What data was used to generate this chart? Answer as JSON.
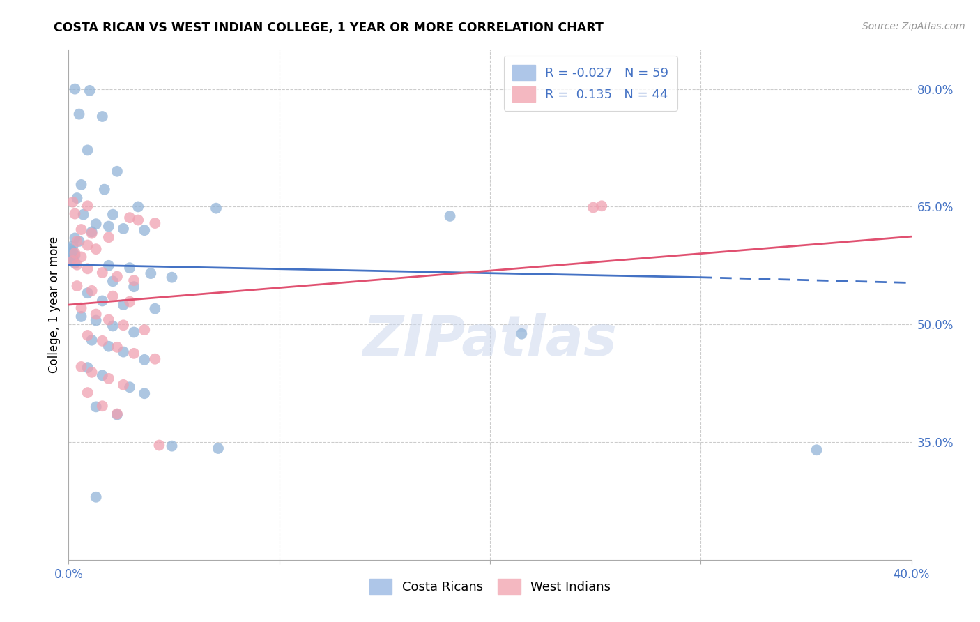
{
  "title": "COSTA RICAN VS WEST INDIAN COLLEGE, 1 YEAR OR MORE CORRELATION CHART",
  "source": "Source: ZipAtlas.com",
  "ylabel": "College, 1 year or more",
  "xlim": [
    0.0,
    0.4
  ],
  "ylim": [
    0.2,
    0.85
  ],
  "ytick_labels_right": [
    "80.0%",
    "65.0%",
    "50.0%",
    "35.0%"
  ],
  "ytick_positions_right": [
    0.8,
    0.65,
    0.5,
    0.35
  ],
  "watermark": "ZIPatlas",
  "blue_color": "#92b4d8",
  "pink_color": "#f0a0b0",
  "blue_line_color": "#4472c4",
  "pink_line_color": "#e05070",
  "blue_line_solid": [
    [
      0.0,
      0.576
    ],
    [
      0.3,
      0.56
    ]
  ],
  "blue_line_dash": [
    [
      0.3,
      0.56
    ],
    [
      0.4,
      0.553
    ]
  ],
  "pink_line": [
    [
      0.0,
      0.525
    ],
    [
      0.4,
      0.612
    ]
  ],
  "blue_scatter": [
    [
      0.003,
      0.8
    ],
    [
      0.01,
      0.798
    ],
    [
      0.005,
      0.768
    ],
    [
      0.016,
      0.765
    ],
    [
      0.009,
      0.722
    ],
    [
      0.023,
      0.695
    ],
    [
      0.006,
      0.678
    ],
    [
      0.017,
      0.672
    ],
    [
      0.004,
      0.661
    ],
    [
      0.033,
      0.65
    ],
    [
      0.07,
      0.648
    ],
    [
      0.007,
      0.64
    ],
    [
      0.021,
      0.64
    ],
    [
      0.013,
      0.628
    ],
    [
      0.019,
      0.625
    ],
    [
      0.026,
      0.622
    ],
    [
      0.036,
      0.62
    ],
    [
      0.011,
      0.618
    ],
    [
      0.003,
      0.61
    ],
    [
      0.005,
      0.606
    ],
    [
      0.002,
      0.6
    ],
    [
      0.001,
      0.596
    ],
    [
      0.002,
      0.593
    ],
    [
      0.001,
      0.59
    ],
    [
      0.003,
      0.588
    ],
    [
      0.002,
      0.585
    ],
    [
      0.001,
      0.582
    ],
    [
      0.003,
      0.578
    ],
    [
      0.019,
      0.575
    ],
    [
      0.029,
      0.572
    ],
    [
      0.039,
      0.565
    ],
    [
      0.049,
      0.56
    ],
    [
      0.021,
      0.555
    ],
    [
      0.031,
      0.548
    ],
    [
      0.009,
      0.54
    ],
    [
      0.016,
      0.53
    ],
    [
      0.026,
      0.525
    ],
    [
      0.041,
      0.52
    ],
    [
      0.006,
      0.51
    ],
    [
      0.013,
      0.505
    ],
    [
      0.021,
      0.498
    ],
    [
      0.031,
      0.49
    ],
    [
      0.011,
      0.48
    ],
    [
      0.019,
      0.472
    ],
    [
      0.026,
      0.465
    ],
    [
      0.036,
      0.455
    ],
    [
      0.009,
      0.445
    ],
    [
      0.016,
      0.435
    ],
    [
      0.029,
      0.42
    ],
    [
      0.036,
      0.412
    ],
    [
      0.013,
      0.395
    ],
    [
      0.023,
      0.385
    ],
    [
      0.049,
      0.345
    ],
    [
      0.071,
      0.342
    ],
    [
      0.181,
      0.638
    ],
    [
      0.013,
      0.28
    ],
    [
      0.215,
      0.488
    ],
    [
      0.355,
      0.34
    ]
  ],
  "pink_scatter": [
    [
      0.002,
      0.656
    ],
    [
      0.009,
      0.651
    ],
    [
      0.003,
      0.641
    ],
    [
      0.029,
      0.636
    ],
    [
      0.033,
      0.633
    ],
    [
      0.041,
      0.629
    ],
    [
      0.006,
      0.621
    ],
    [
      0.011,
      0.616
    ],
    [
      0.019,
      0.611
    ],
    [
      0.004,
      0.606
    ],
    [
      0.009,
      0.601
    ],
    [
      0.013,
      0.596
    ],
    [
      0.003,
      0.591
    ],
    [
      0.006,
      0.586
    ],
    [
      0.002,
      0.581
    ],
    [
      0.004,
      0.576
    ],
    [
      0.009,
      0.571
    ],
    [
      0.016,
      0.566
    ],
    [
      0.023,
      0.561
    ],
    [
      0.031,
      0.556
    ],
    [
      0.004,
      0.549
    ],
    [
      0.011,
      0.543
    ],
    [
      0.021,
      0.536
    ],
    [
      0.029,
      0.529
    ],
    [
      0.006,
      0.521
    ],
    [
      0.013,
      0.513
    ],
    [
      0.019,
      0.506
    ],
    [
      0.026,
      0.499
    ],
    [
      0.036,
      0.493
    ],
    [
      0.009,
      0.486
    ],
    [
      0.016,
      0.479
    ],
    [
      0.023,
      0.471
    ],
    [
      0.031,
      0.463
    ],
    [
      0.041,
      0.456
    ],
    [
      0.006,
      0.446
    ],
    [
      0.011,
      0.439
    ],
    [
      0.019,
      0.431
    ],
    [
      0.026,
      0.423
    ],
    [
      0.009,
      0.413
    ],
    [
      0.016,
      0.396
    ],
    [
      0.023,
      0.386
    ],
    [
      0.043,
      0.346
    ],
    [
      0.249,
      0.649
    ],
    [
      0.253,
      0.651
    ]
  ]
}
